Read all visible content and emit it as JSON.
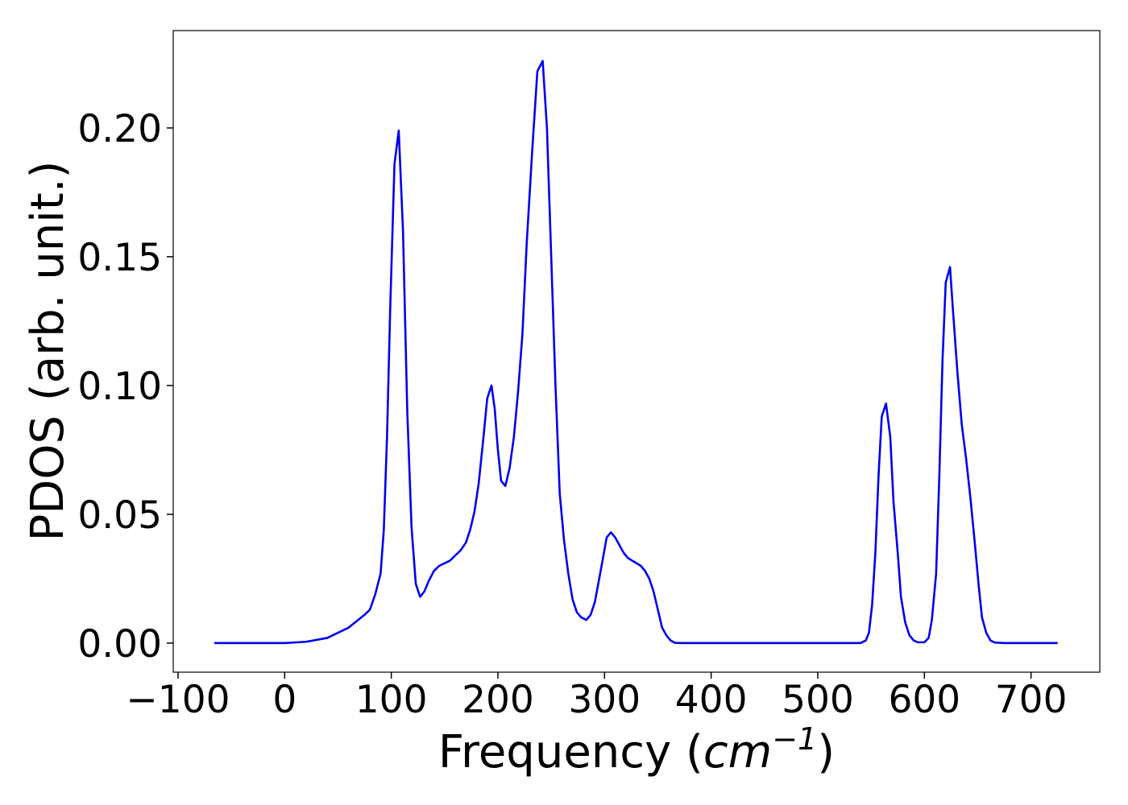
{
  "chart_data": {
    "type": "line",
    "xlabel": [
      "Frequency (",
      "cm",
      "−1",
      ")"
    ],
    "ylabel": "PDOS (arb. unit.)",
    "xlim": [
      -104.5,
      764.5
    ],
    "ylim": [
      -0.0113,
      0.2378
    ],
    "xticks": [
      {
        "value": -100,
        "label": "−100"
      },
      0,
      100,
      200,
      300,
      400,
      500,
      600,
      700
    ],
    "yticks": [
      {
        "value": 0,
        "label": "0.00"
      },
      {
        "value": 0.05,
        "label": "0.05"
      },
      {
        "value": 0.1,
        "label": "0.10"
      },
      {
        "value": 0.15,
        "label": "0.15"
      },
      {
        "value": 0.2,
        "label": "0.20"
      }
    ],
    "grid": false,
    "series": [
      {
        "name": "PDOS",
        "color": "#0000ee",
        "x": [
          -66,
          0,
          20,
          40,
          60,
          75,
          80,
          85,
          90,
          93,
          96,
          99,
          103,
          107,
          111,
          115,
          119,
          123,
          127,
          131,
          135,
          140,
          145,
          150,
          155,
          160,
          165,
          170,
          174,
          178,
          182,
          186,
          190,
          194,
          197,
          200,
          203,
          207,
          211,
          215,
          219,
          223,
          227,
          232,
          237,
          242,
          246,
          250,
          254,
          258,
          262,
          266,
          270,
          274,
          278,
          283,
          287,
          291,
          295,
          299,
          302,
          306,
          310,
          314,
          318,
          322,
          326,
          330,
          334,
          338,
          342,
          346,
          350,
          354,
          358,
          362,
          366,
          372,
          540,
          545,
          548,
          551,
          554,
          557,
          560,
          564,
          568,
          571,
          575,
          578,
          582,
          586,
          590,
          594,
          600,
          604,
          607,
          611,
          614,
          617,
          620,
          624,
          627,
          631,
          635,
          639,
          643,
          647,
          651,
          654,
          658,
          662,
          666,
          675,
          725
        ],
        "values": [
          0,
          0,
          0.0005,
          0.002,
          0.006,
          0.011,
          0.013,
          0.019,
          0.027,
          0.044,
          0.08,
          0.13,
          0.186,
          0.199,
          0.16,
          0.09,
          0.045,
          0.023,
          0.018,
          0.02,
          0.024,
          0.028,
          0.03,
          0.031,
          0.032,
          0.034,
          0.036,
          0.039,
          0.044,
          0.051,
          0.062,
          0.078,
          0.095,
          0.1,
          0.091,
          0.075,
          0.063,
          0.061,
          0.068,
          0.08,
          0.098,
          0.12,
          0.155,
          0.19,
          0.222,
          0.226,
          0.2,
          0.15,
          0.1,
          0.058,
          0.04,
          0.027,
          0.017,
          0.012,
          0.01,
          0.009,
          0.011,
          0.016,
          0.025,
          0.034,
          0.041,
          0.043,
          0.041,
          0.038,
          0.035,
          0.033,
          0.032,
          0.031,
          0.03,
          0.028,
          0.025,
          0.02,
          0.013,
          0.006,
          0.003,
          0.001,
          0.0001,
          0,
          0,
          0.001,
          0.004,
          0.015,
          0.035,
          0.065,
          0.088,
          0.093,
          0.08,
          0.055,
          0.035,
          0.018,
          0.008,
          0.003,
          0.001,
          0.0003,
          0.0003,
          0.002,
          0.009,
          0.027,
          0.065,
          0.11,
          0.14,
          0.146,
          0.128,
          0.105,
          0.085,
          0.072,
          0.057,
          0.04,
          0.022,
          0.01,
          0.004,
          0.001,
          0.0002,
          0,
          0
        ]
      }
    ]
  }
}
